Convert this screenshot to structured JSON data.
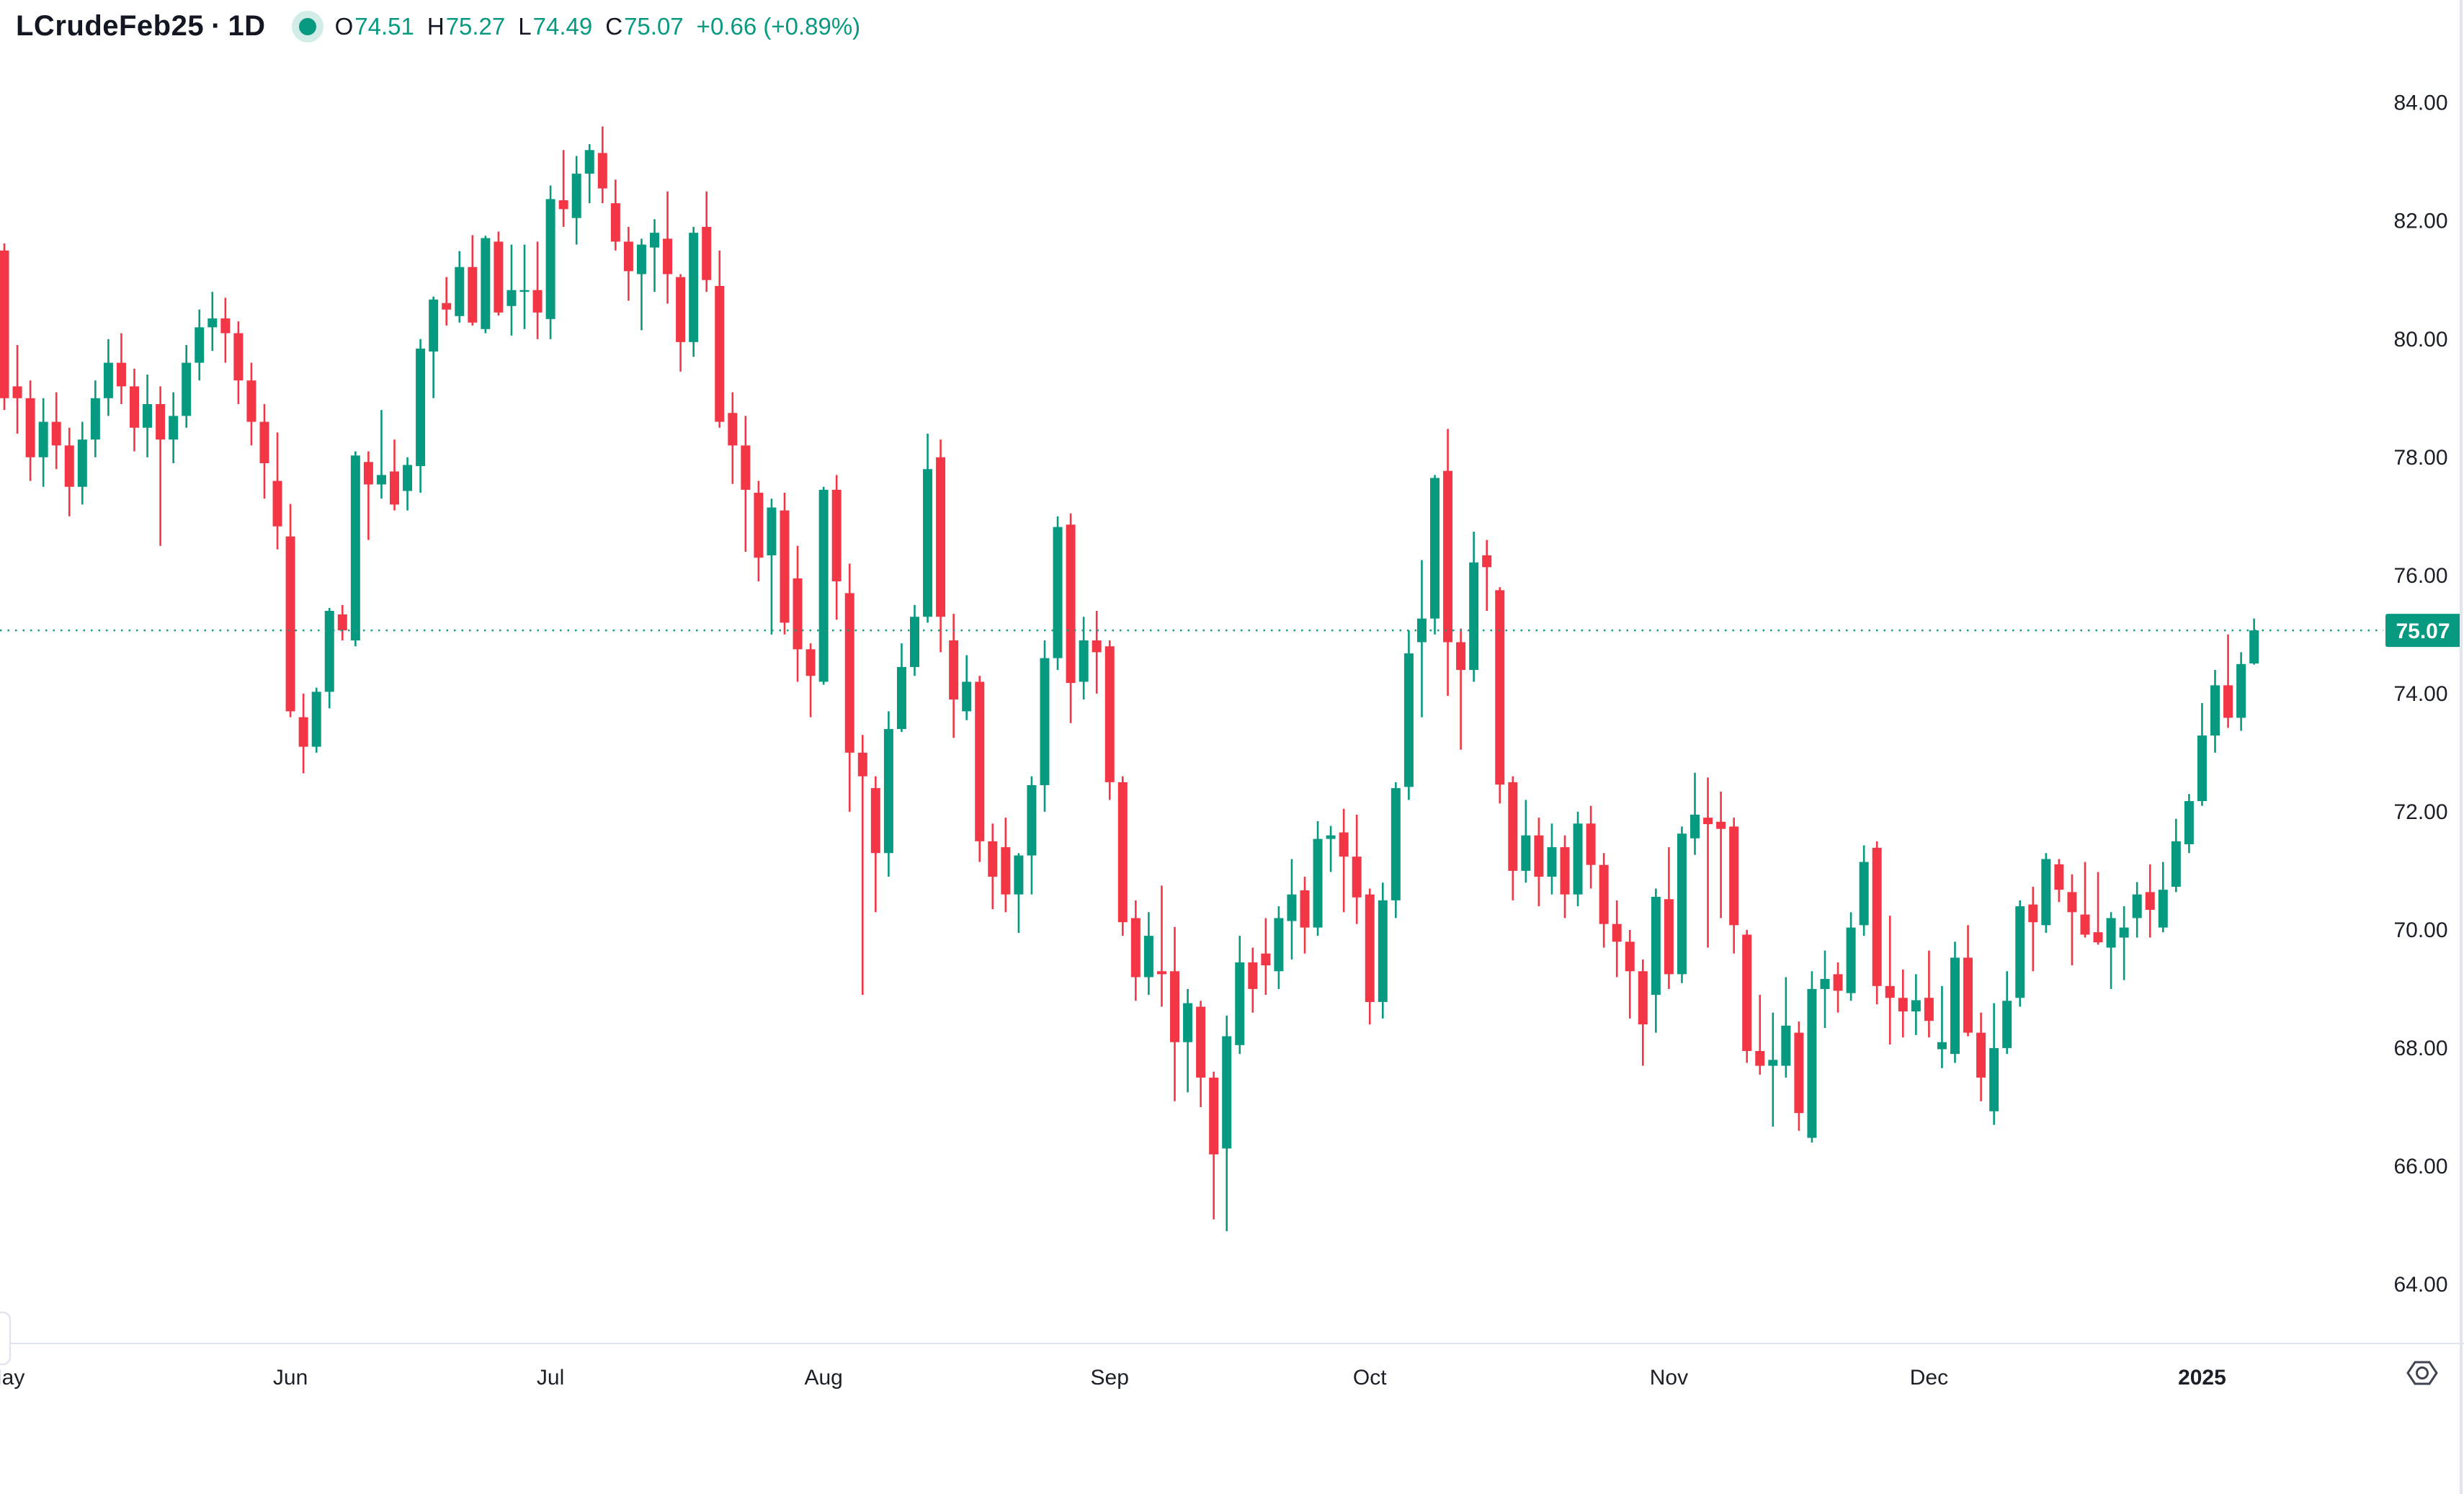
{
  "header": {
    "symbol": "LCrudeFeb25",
    "separator": "·",
    "interval": "1D",
    "ohlc": {
      "o_label": "O",
      "o": "74.51",
      "h_label": "H",
      "h": "75.27",
      "l_label": "L",
      "l": "74.49",
      "c_label": "C",
      "c": "75.07"
    },
    "change": "+0.66 (+0.89%)"
  },
  "colors": {
    "up": "#089981",
    "down": "#f23645",
    "price_line": "#1d9b80",
    "price_label_bg": "#089981",
    "price_label_text": "#ffffff",
    "header_text": "#131722",
    "value_text": "#089981",
    "axis_text": "#1b1f27",
    "border": "#e2e5ec",
    "icon": "#3f4450",
    "background": "#ffffff"
  },
  "price_axis": {
    "ticks": [
      {
        "value": 84,
        "label": "84.00"
      },
      {
        "value": 82,
        "label": "82.00"
      },
      {
        "value": 80,
        "label": "80.00"
      },
      {
        "value": 78,
        "label": "78.00"
      },
      {
        "value": 76,
        "label": "76.00"
      },
      {
        "value": 74,
        "label": "74.00"
      },
      {
        "value": 72,
        "label": "72.00"
      },
      {
        "value": 70,
        "label": "70.00"
      },
      {
        "value": 68,
        "label": "68.00"
      },
      {
        "value": 66,
        "label": "66.00"
      },
      {
        "value": 64,
        "label": "64.00"
      }
    ],
    "last_price_label": "75.07"
  },
  "time_axis": {
    "months": [
      {
        "label": "May",
        "index": 0,
        "bold": false
      },
      {
        "label": "Jun",
        "index": 22,
        "bold": false
      },
      {
        "label": "Jul",
        "index": 42,
        "bold": false
      },
      {
        "label": "Aug",
        "index": 63,
        "bold": false
      },
      {
        "label": "Sep",
        "index": 85,
        "bold": false
      },
      {
        "label": "Oct",
        "index": 105,
        "bold": false
      },
      {
        "label": "Nov",
        "index": 128,
        "bold": false
      },
      {
        "label": "Dec",
        "index": 148,
        "bold": false
      },
      {
        "label": "2025",
        "index": 169,
        "bold": true
      }
    ]
  },
  "chart_data": {
    "type": "candlestick",
    "title": "LCrudeFeb25",
    "timeframe": "1D",
    "xlabel": "",
    "ylabel": "",
    "grid": false,
    "legend_position": "none",
    "ylim": [
      63.0,
      85.74
    ],
    "y_ticks": [
      64,
      66,
      68,
      70,
      72,
      74,
      76,
      78,
      80,
      82,
      84
    ],
    "last_price": 75.07,
    "price_line_value": 75.07,
    "candles_format": [
      "open",
      "high",
      "low",
      "close"
    ],
    "candles": [
      [
        81.5,
        81.62,
        78.8,
        79.0
      ],
      [
        79.2,
        79.9,
        78.4,
        79.0
      ],
      [
        79.0,
        79.3,
        77.6,
        78.0
      ],
      [
        78.0,
        79.0,
        77.5,
        78.6
      ],
      [
        78.6,
        79.1,
        77.8,
        78.2
      ],
      [
        78.2,
        78.5,
        77.0,
        77.5
      ],
      [
        77.5,
        78.6,
        77.2,
        78.3
      ],
      [
        78.3,
        79.3,
        78.0,
        79.0
      ],
      [
        79.0,
        80.0,
        78.7,
        79.6
      ],
      [
        79.6,
        80.1,
        78.9,
        79.2
      ],
      [
        79.2,
        79.5,
        78.1,
        78.5
      ],
      [
        78.5,
        79.4,
        78.0,
        78.9
      ],
      [
        78.9,
        79.2,
        76.5,
        78.3
      ],
      [
        78.3,
        79.1,
        77.9,
        78.7
      ],
      [
        78.7,
        79.9,
        78.5,
        79.6
      ],
      [
        79.6,
        80.5,
        79.3,
        80.2
      ],
      [
        80.2,
        80.8,
        79.8,
        80.35
      ],
      [
        80.35,
        80.7,
        79.6,
        80.1
      ],
      [
        80.1,
        80.3,
        78.9,
        79.3
      ],
      [
        79.3,
        79.6,
        78.2,
        78.6
      ],
      [
        78.6,
        78.9,
        77.3,
        77.9
      ],
      [
        77.6,
        78.42,
        76.44,
        76.83
      ],
      [
        76.66,
        77.21,
        73.6,
        73.7
      ],
      [
        73.6,
        74.0,
        72.65,
        73.1
      ],
      [
        73.1,
        74.1,
        73.0,
        74.03
      ],
      [
        74.03,
        75.45,
        73.75,
        75.4
      ],
      [
        75.34,
        75.5,
        74.9,
        75.07
      ],
      [
        74.9,
        78.1,
        74.8,
        78.03
      ],
      [
        77.92,
        78.1,
        76.6,
        77.54
      ],
      [
        77.54,
        78.8,
        77.3,
        77.7
      ],
      [
        77.76,
        78.3,
        77.1,
        77.2
      ],
      [
        77.43,
        78.0,
        77.1,
        77.87
      ],
      [
        77.85,
        80.0,
        77.4,
        79.84
      ],
      [
        79.79,
        80.72,
        79.0,
        80.67
      ],
      [
        80.61,
        81.05,
        80.23,
        80.5
      ],
      [
        80.39,
        81.49,
        80.28,
        81.22
      ],
      [
        81.22,
        81.76,
        80.23,
        80.28
      ],
      [
        80.17,
        81.75,
        80.1,
        81.71
      ],
      [
        81.65,
        81.82,
        80.4,
        80.45
      ],
      [
        80.56,
        81.6,
        80.06,
        80.83
      ],
      [
        80.83,
        81.6,
        80.17,
        80.83
      ],
      [
        80.83,
        81.65,
        80.0,
        80.45
      ],
      [
        80.34,
        82.6,
        80.0,
        82.37
      ],
      [
        82.35,
        83.2,
        81.9,
        82.2
      ],
      [
        82.05,
        83.1,
        81.6,
        82.8
      ],
      [
        82.8,
        83.3,
        82.3,
        83.2
      ],
      [
        83.15,
        83.6,
        82.3,
        82.55
      ],
      [
        82.3,
        82.7,
        81.5,
        81.65
      ],
      [
        81.65,
        81.9,
        80.65,
        81.15
      ],
      [
        81.1,
        81.7,
        80.15,
        81.6
      ],
      [
        81.55,
        82.03,
        80.8,
        81.8
      ],
      [
        81.7,
        82.5,
        80.6,
        81.1
      ],
      [
        81.05,
        81.1,
        79.45,
        79.95
      ],
      [
        79.95,
        81.9,
        79.7,
        81.8
      ],
      [
        81.9,
        82.5,
        80.8,
        81.0
      ],
      [
        80.9,
        81.5,
        78.5,
        78.6
      ],
      [
        78.75,
        79.1,
        77.55,
        78.2
      ],
      [
        78.2,
        78.7,
        76.4,
        77.45
      ],
      [
        77.4,
        77.6,
        75.9,
        76.3
      ],
      [
        76.34,
        77.3,
        75.0,
        77.15
      ],
      [
        77.1,
        77.4,
        75.0,
        75.2
      ],
      [
        75.95,
        76.5,
        74.2,
        74.75
      ],
      [
        74.75,
        74.85,
        73.6,
        74.3
      ],
      [
        74.2,
        77.5,
        74.15,
        77.45
      ],
      [
        77.45,
        77.7,
        75.25,
        75.9
      ],
      [
        75.7,
        76.2,
        72.0,
        73.0
      ],
      [
        73.0,
        73.3,
        68.9,
        72.6
      ],
      [
        72.4,
        72.6,
        70.3,
        71.3
      ],
      [
        71.3,
        73.7,
        70.9,
        73.4
      ],
      [
        73.4,
        74.85,
        73.35,
        74.45
      ],
      [
        74.45,
        75.5,
        74.3,
        75.3
      ],
      [
        75.3,
        78.4,
        75.2,
        77.8
      ],
      [
        78.0,
        78.3,
        74.7,
        75.3
      ],
      [
        74.9,
        75.35,
        73.25,
        73.9
      ],
      [
        73.7,
        74.65,
        73.55,
        74.2
      ],
      [
        74.2,
        74.3,
        71.15,
        71.5
      ],
      [
        71.5,
        71.8,
        70.35,
        70.9
      ],
      [
        71.4,
        71.9,
        70.3,
        70.6
      ],
      [
        70.6,
        71.3,
        69.95,
        71.26
      ],
      [
        71.26,
        72.6,
        70.6,
        72.45
      ],
      [
        72.45,
        74.9,
        72.0,
        74.6
      ],
      [
        74.6,
        77.0,
        74.4,
        76.82
      ],
      [
        76.86,
        77.05,
        73.5,
        74.18
      ],
      [
        74.2,
        75.3,
        73.9,
        74.9
      ],
      [
        74.9,
        75.4,
        74.0,
        74.7
      ],
      [
        74.8,
        74.9,
        72.2,
        72.5
      ],
      [
        72.5,
        72.6,
        69.9,
        70.13
      ],
      [
        70.2,
        70.5,
        68.8,
        69.2
      ],
      [
        69.2,
        70.3,
        68.9,
        69.9
      ],
      [
        69.3,
        70.75,
        68.7,
        69.25
      ],
      [
        69.3,
        70.05,
        67.1,
        68.1
      ],
      [
        68.1,
        69.0,
        67.25,
        68.76
      ],
      [
        68.7,
        68.8,
        67.0,
        67.5
      ],
      [
        67.5,
        67.6,
        65.1,
        66.2
      ],
      [
        66.3,
        68.55,
        64.9,
        68.2
      ],
      [
        68.05,
        69.9,
        67.9,
        69.45
      ],
      [
        69.45,
        69.7,
        68.6,
        69.0
      ],
      [
        69.6,
        70.2,
        68.9,
        69.4
      ],
      [
        69.3,
        70.4,
        69.0,
        70.2
      ],
      [
        70.15,
        71.2,
        69.5,
        70.6
      ],
      [
        70.67,
        70.9,
        69.6,
        70.04
      ],
      [
        70.04,
        71.84,
        69.9,
        71.54
      ],
      [
        71.54,
        71.76,
        70.98,
        71.6
      ],
      [
        71.65,
        72.05,
        70.3,
        71.24
      ],
      [
        71.24,
        71.95,
        70.1,
        70.55
      ],
      [
        70.6,
        70.7,
        68.4,
        68.78
      ],
      [
        68.78,
        70.8,
        68.5,
        70.5
      ],
      [
        70.5,
        72.5,
        70.2,
        72.4
      ],
      [
        72.42,
        75.07,
        72.2,
        74.68
      ],
      [
        74.87,
        76.26,
        73.6,
        75.27
      ],
      [
        75.27,
        77.7,
        75.0,
        77.65
      ],
      [
        77.77,
        78.48,
        73.96,
        74.87
      ],
      [
        74.87,
        75.1,
        73.05,
        74.4
      ],
      [
        74.4,
        76.74,
        74.2,
        76.22
      ],
      [
        76.34,
        76.6,
        75.4,
        76.14
      ],
      [
        75.75,
        75.8,
        72.14,
        72.46
      ],
      [
        72.5,
        72.6,
        70.5,
        71.0
      ],
      [
        71.0,
        72.2,
        70.8,
        71.6
      ],
      [
        71.6,
        71.9,
        70.4,
        70.9
      ],
      [
        70.9,
        71.8,
        70.6,
        71.4
      ],
      [
        71.4,
        71.6,
        70.2,
        70.6
      ],
      [
        70.6,
        72.0,
        70.4,
        71.8
      ],
      [
        71.8,
        72.1,
        70.7,
        71.1
      ],
      [
        71.1,
        71.3,
        69.7,
        70.1
      ],
      [
        70.1,
        70.5,
        69.2,
        69.8
      ],
      [
        69.8,
        70.0,
        68.5,
        69.3
      ],
      [
        69.3,
        69.5,
        67.7,
        68.4
      ],
      [
        68.9,
        70.7,
        68.26,
        70.56
      ],
      [
        70.52,
        71.4,
        69.0,
        69.25
      ],
      [
        69.25,
        71.75,
        69.1,
        71.63
      ],
      [
        71.55,
        72.66,
        71.27,
        71.95
      ],
      [
        71.9,
        72.58,
        69.7,
        71.79
      ],
      [
        71.83,
        72.34,
        70.2,
        71.71
      ],
      [
        71.75,
        71.9,
        69.6,
        70.08
      ],
      [
        69.92,
        70.0,
        67.75,
        67.95
      ],
      [
        67.95,
        68.9,
        67.55,
        67.7
      ],
      [
        67.7,
        68.6,
        66.67,
        67.8
      ],
      [
        67.7,
        69.2,
        67.5,
        68.38
      ],
      [
        68.26,
        68.45,
        66.6,
        66.9
      ],
      [
        66.48,
        69.3,
        66.4,
        69.0
      ],
      [
        69.0,
        69.65,
        68.34,
        69.17
      ],
      [
        69.25,
        69.45,
        68.6,
        68.97
      ],
      [
        68.93,
        70.3,
        68.8,
        70.04
      ],
      [
        70.08,
        71.43,
        69.9,
        71.15
      ],
      [
        71.39,
        71.5,
        68.74,
        69.05
      ],
      [
        69.05,
        70.24,
        68.06,
        68.85
      ],
      [
        68.85,
        69.33,
        68.18,
        68.62
      ],
      [
        68.62,
        69.25,
        68.22,
        68.81
      ],
      [
        68.85,
        69.65,
        68.18,
        68.46
      ],
      [
        67.98,
        69.05,
        67.66,
        68.1
      ],
      [
        67.9,
        69.8,
        67.75,
        69.53
      ],
      [
        69.53,
        70.08,
        68.2,
        68.26
      ],
      [
        68.26,
        68.6,
        67.1,
        67.5
      ],
      [
        66.93,
        68.76,
        66.7,
        68.0
      ],
      [
        68.0,
        69.3,
        67.9,
        68.8
      ],
      [
        68.85,
        70.5,
        68.7,
        70.4
      ],
      [
        70.43,
        70.73,
        69.3,
        70.13
      ],
      [
        70.08,
        71.3,
        69.95,
        71.2
      ],
      [
        71.11,
        71.2,
        70.47,
        70.68
      ],
      [
        70.64,
        70.94,
        69.4,
        70.3
      ],
      [
        70.26,
        71.15,
        69.87,
        69.92
      ],
      [
        69.96,
        70.98,
        69.75,
        69.79
      ],
      [
        69.7,
        70.3,
        69.0,
        70.2
      ],
      [
        69.87,
        70.4,
        69.15,
        70.04
      ],
      [
        70.2,
        70.81,
        69.87,
        70.6
      ],
      [
        70.64,
        71.11,
        69.87,
        70.34
      ],
      [
        70.04,
        71.15,
        69.96,
        70.68
      ],
      [
        70.73,
        71.88,
        70.64,
        71.5
      ],
      [
        71.45,
        72.3,
        71.3,
        72.18
      ],
      [
        72.18,
        73.84,
        72.1,
        73.29
      ],
      [
        73.29,
        74.4,
        73.0,
        74.14
      ],
      [
        74.14,
        75.0,
        73.42,
        73.59
      ],
      [
        73.59,
        74.7,
        73.37,
        74.5
      ],
      [
        74.51,
        75.27,
        74.49,
        75.07
      ]
    ]
  }
}
